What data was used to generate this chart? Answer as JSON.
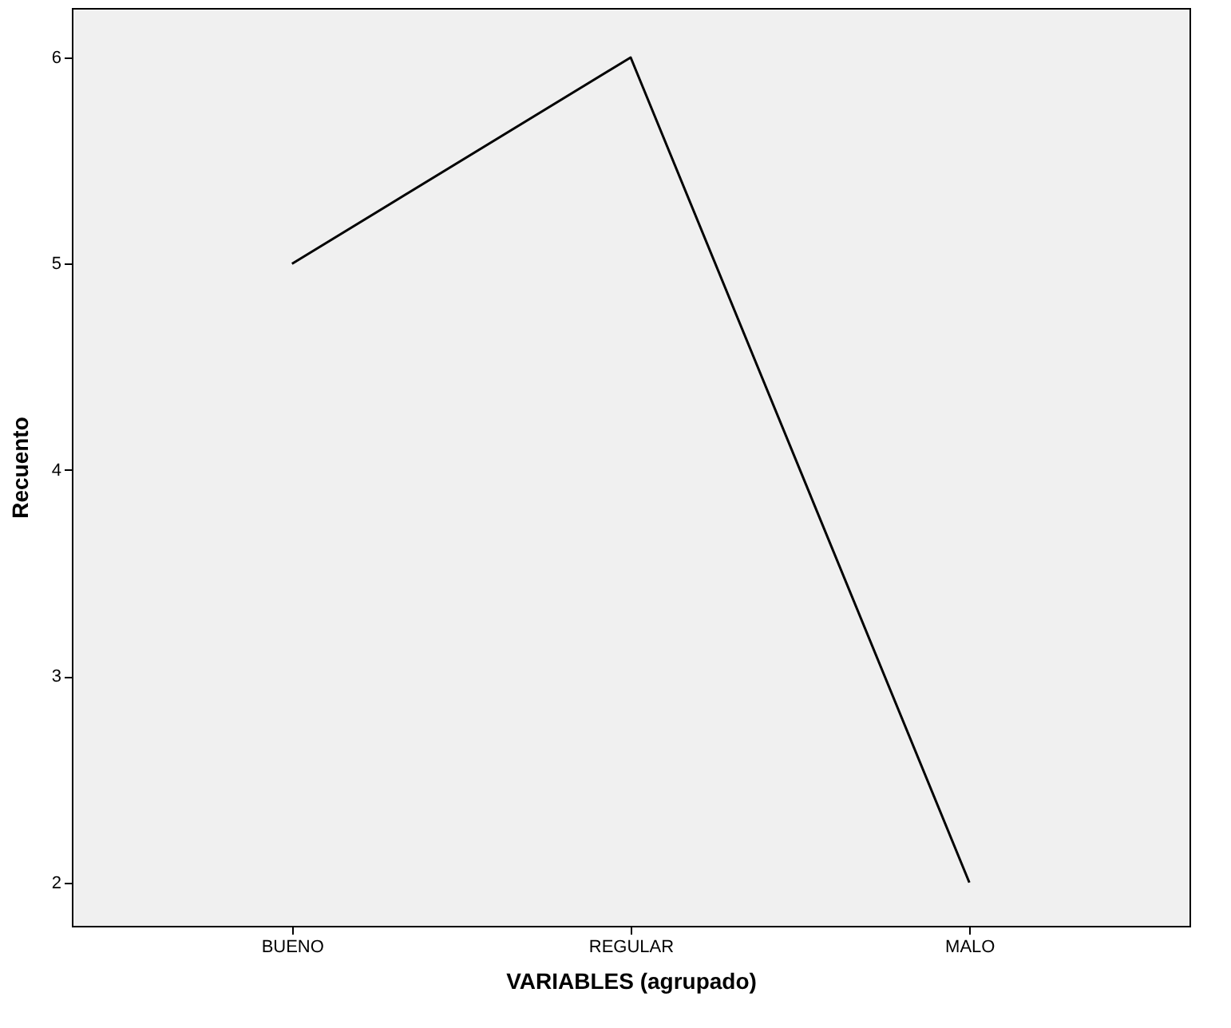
{
  "chart_data": {
    "type": "line",
    "xlabel": "VARIABLES (agrupado)",
    "ylabel": "Recuento",
    "categories": [
      "BUENO",
      "REGULAR",
      "MALO"
    ],
    "series": [
      {
        "color": "#000000",
        "values": [
          5,
          6,
          2
        ]
      }
    ],
    "ylim": [
      1.79,
      6.24
    ],
    "yticks": [
      2,
      3,
      4,
      5,
      6
    ],
    "grid": false,
    "marker": "none",
    "line_style": "solid"
  }
}
